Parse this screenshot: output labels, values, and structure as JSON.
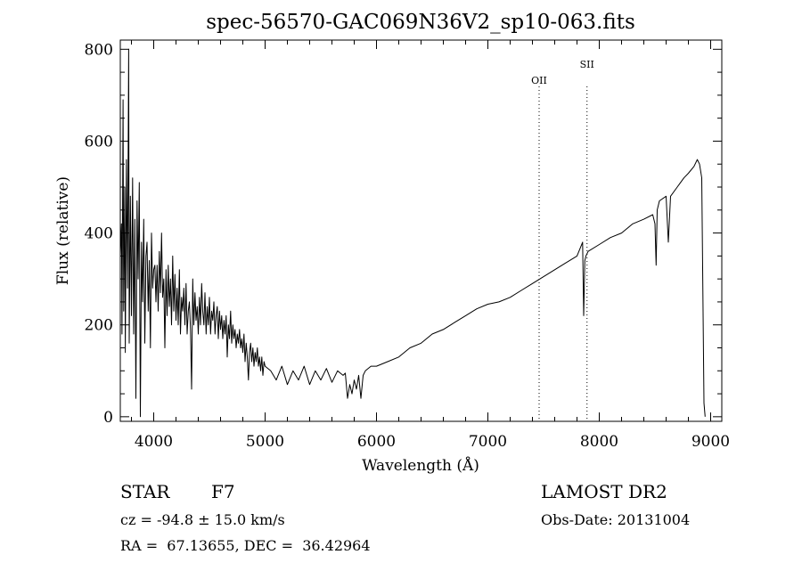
{
  "chart_data": {
    "type": "line",
    "title": "spec-56570-GAC069N36V2_sp10-063.fits",
    "xlabel": "Wavelength (Å)",
    "ylabel": "Flux (relative)",
    "xlim": [
      3700,
      9100
    ],
    "ylim": [
      -10,
      820
    ],
    "x_ticks": [
      4000,
      5000,
      6000,
      7000,
      8000,
      9000
    ],
    "y_ticks": [
      0,
      200,
      400,
      600,
      800
    ],
    "grid": false,
    "legend": "none",
    "series": [
      {
        "points": [
          [
            3700,
            350
          ],
          [
            3710,
            420
          ],
          [
            3715,
            180
          ],
          [
            3725,
            690
          ],
          [
            3730,
            230
          ],
          [
            3740,
            500
          ],
          [
            3745,
            140
          ],
          [
            3755,
            560
          ],
          [
            3765,
            280
          ],
          [
            3775,
            800
          ],
          [
            3780,
            160
          ],
          [
            3790,
            480
          ],
          [
            3800,
            220
          ],
          [
            3810,
            520
          ],
          [
            3820,
            180
          ],
          [
            3830,
            430
          ],
          [
            3840,
            40
          ],
          [
            3850,
            470
          ],
          [
            3860,
            300
          ],
          [
            3870,
            510
          ],
          [
            3880,
            0
          ],
          [
            3890,
            380
          ],
          [
            3900,
            250
          ],
          [
            3910,
            430
          ],
          [
            3920,
            160
          ],
          [
            3930,
            350
          ],
          [
            3940,
            380
          ],
          [
            3950,
            230
          ],
          [
            3960,
            340
          ],
          [
            3970,
            150
          ],
          [
            3980,
            400
          ],
          [
            3990,
            280
          ],
          [
            4000,
            320
          ],
          [
            4010,
            330
          ],
          [
            4020,
            250
          ],
          [
            4030,
            330
          ],
          [
            4040,
            230
          ],
          [
            4050,
            360
          ],
          [
            4060,
            270
          ],
          [
            4070,
            400
          ],
          [
            4080,
            260
          ],
          [
            4090,
            300
          ],
          [
            4100,
            150
          ],
          [
            4110,
            320
          ],
          [
            4120,
            220
          ],
          [
            4130,
            330
          ],
          [
            4140,
            240
          ],
          [
            4150,
            300
          ],
          [
            4160,
            200
          ],
          [
            4170,
            350
          ],
          [
            4180,
            230
          ],
          [
            4190,
            310
          ],
          [
            4200,
            210
          ],
          [
            4210,
            280
          ],
          [
            4220,
            200
          ],
          [
            4230,
            320
          ],
          [
            4240,
            180
          ],
          [
            4250,
            260
          ],
          [
            4260,
            230
          ],
          [
            4270,
            280
          ],
          [
            4280,
            200
          ],
          [
            4290,
            290
          ],
          [
            4300,
            180
          ],
          [
            4310,
            230
          ],
          [
            4320,
            250
          ],
          [
            4330,
            190
          ],
          [
            4340,
            60
          ],
          [
            4350,
            300
          ],
          [
            4360,
            200
          ],
          [
            4370,
            270
          ],
          [
            4380,
            210
          ],
          [
            4390,
            240
          ],
          [
            4400,
            180
          ],
          [
            4410,
            260
          ],
          [
            4420,
            200
          ],
          [
            4430,
            290
          ],
          [
            4440,
            230
          ],
          [
            4450,
            200
          ],
          [
            4460,
            270
          ],
          [
            4470,
            180
          ],
          [
            4480,
            240
          ],
          [
            4490,
            200
          ],
          [
            4500,
            260
          ],
          [
            4510,
            180
          ],
          [
            4520,
            230
          ],
          [
            4530,
            210
          ],
          [
            4540,
            250
          ],
          [
            4550,
            180
          ],
          [
            4560,
            220
          ],
          [
            4570,
            240
          ],
          [
            4580,
            170
          ],
          [
            4590,
            230
          ],
          [
            4600,
            190
          ],
          [
            4610,
            220
          ],
          [
            4620,
            170
          ],
          [
            4630,
            210
          ],
          [
            4640,
            180
          ],
          [
            4650,
            220
          ],
          [
            4660,
            130
          ],
          [
            4670,
            200
          ],
          [
            4680,
            170
          ],
          [
            4690,
            230
          ],
          [
            4700,
            160
          ],
          [
            4710,
            200
          ],
          [
            4720,
            170
          ],
          [
            4730,
            190
          ],
          [
            4740,
            150
          ],
          [
            4750,
            180
          ],
          [
            4760,
            160
          ],
          [
            4770,
            190
          ],
          [
            4780,
            150
          ],
          [
            4790,
            170
          ],
          [
            4800,
            140
          ],
          [
            4810,
            180
          ],
          [
            4820,
            120
          ],
          [
            4830,
            160
          ],
          [
            4840,
            130
          ],
          [
            4850,
            80
          ],
          [
            4860,
            140
          ],
          [
            4870,
            160
          ],
          [
            4880,
            120
          ],
          [
            4890,
            150
          ],
          [
            4900,
            110
          ],
          [
            4910,
            140
          ],
          [
            4920,
            120
          ],
          [
            4930,
            150
          ],
          [
            4940,
            110
          ],
          [
            4950,
            130
          ],
          [
            4960,
            100
          ],
          [
            4970,
            130
          ],
          [
            4980,
            90
          ],
          [
            4990,
            120
          ],
          [
            5000,
            110
          ],
          [
            5050,
            100
          ],
          [
            5100,
            80
          ],
          [
            5150,
            110
          ],
          [
            5200,
            70
          ],
          [
            5250,
            100
          ],
          [
            5300,
            80
          ],
          [
            5350,
            110
          ],
          [
            5400,
            70
          ],
          [
            5450,
            100
          ],
          [
            5500,
            80
          ],
          [
            5550,
            105
          ],
          [
            5600,
            75
          ],
          [
            5650,
            100
          ],
          [
            5700,
            90
          ],
          [
            5720,
            95
          ],
          [
            5740,
            40
          ],
          [
            5760,
            70
          ],
          [
            5780,
            50
          ],
          [
            5800,
            80
          ],
          [
            5820,
            60
          ],
          [
            5840,
            90
          ],
          [
            5860,
            40
          ],
          [
            5880,
            90
          ],
          [
            5900,
            100
          ],
          [
            5950,
            110
          ],
          [
            6000,
            110
          ],
          [
            6100,
            120
          ],
          [
            6200,
            130
          ],
          [
            6300,
            150
          ],
          [
            6400,
            160
          ],
          [
            6500,
            180
          ],
          [
            6600,
            190
          ],
          [
            6700,
            205
          ],
          [
            6800,
            220
          ],
          [
            6900,
            235
          ],
          [
            7000,
            245
          ],
          [
            7100,
            250
          ],
          [
            7200,
            260
          ],
          [
            7300,
            275
          ],
          [
            7400,
            290
          ],
          [
            7500,
            305
          ],
          [
            7600,
            320
          ],
          [
            7700,
            335
          ],
          [
            7800,
            350
          ],
          [
            7850,
            380
          ],
          [
            7860,
            220
          ],
          [
            7870,
            340
          ],
          [
            7880,
            350
          ],
          [
            7900,
            360
          ],
          [
            8000,
            375
          ],
          [
            8100,
            390
          ],
          [
            8200,
            400
          ],
          [
            8300,
            420
          ],
          [
            8400,
            430
          ],
          [
            8480,
            440
          ],
          [
            8500,
            420
          ],
          [
            8510,
            330
          ],
          [
            8520,
            450
          ],
          [
            8540,
            470
          ],
          [
            8600,
            480
          ],
          [
            8620,
            380
          ],
          [
            8640,
            480
          ],
          [
            8700,
            500
          ],
          [
            8760,
            520
          ],
          [
            8800,
            530
          ],
          [
            8850,
            545
          ],
          [
            8880,
            560
          ],
          [
            8900,
            550
          ],
          [
            8920,
            520
          ],
          [
            8940,
            30
          ],
          [
            8950,
            0
          ]
        ]
      }
    ],
    "annotations": [
      {
        "label": "OII",
        "x": 7460,
        "line_style": "dotted"
      },
      {
        "label": "SII",
        "x": 7890,
        "line_style": "dotted"
      }
    ]
  },
  "info": {
    "object_class": "STAR",
    "subclass": "F7",
    "survey": "LAMOST DR2",
    "redshift_line": "cz = -94.8 ± 15.0 km/s",
    "obs_date_line": "Obs-Date: 20131004",
    "coords_line": "RA =  67.13655, DEC =  36.42964"
  }
}
